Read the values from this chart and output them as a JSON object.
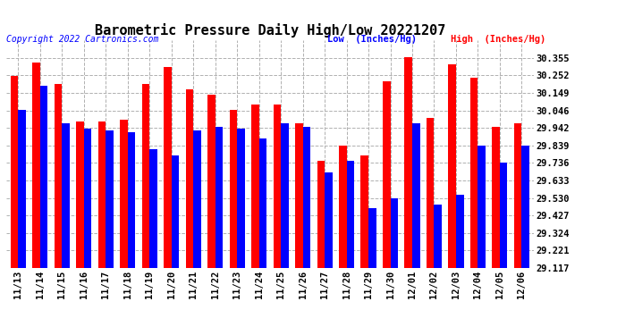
{
  "title": "Barometric Pressure Daily High/Low 20221207",
  "copyright": "Copyright 2022 Cartronics.com",
  "legend_low": "Low  (Inches/Hg)",
  "legend_high": "High  (Inches/Hg)",
  "dates": [
    "11/13",
    "11/14",
    "11/15",
    "11/16",
    "11/17",
    "11/18",
    "11/19",
    "11/20",
    "11/21",
    "11/22",
    "11/23",
    "11/24",
    "11/25",
    "11/26",
    "11/27",
    "11/28",
    "11/29",
    "11/30",
    "12/01",
    "12/02",
    "12/03",
    "12/04",
    "12/05",
    "12/06"
  ],
  "high": [
    30.25,
    30.33,
    30.2,
    29.98,
    29.98,
    29.99,
    30.2,
    30.3,
    30.17,
    30.14,
    30.05,
    30.08,
    30.08,
    29.97,
    29.75,
    29.84,
    29.78,
    30.22,
    30.36,
    30.0,
    30.32,
    30.24,
    29.95,
    29.97
  ],
  "low": [
    30.05,
    30.19,
    29.97,
    29.94,
    29.93,
    29.92,
    29.82,
    29.78,
    29.93,
    29.95,
    29.94,
    29.88,
    29.97,
    29.95,
    29.68,
    29.75,
    29.47,
    29.53,
    29.97,
    29.49,
    29.55,
    29.84,
    29.74,
    29.84
  ],
  "ylim_min": 29.117,
  "ylim_max": 30.46,
  "yticks": [
    29.117,
    29.221,
    29.324,
    29.427,
    29.53,
    29.633,
    29.736,
    29.839,
    29.942,
    30.046,
    30.149,
    30.252,
    30.355
  ],
  "bg_color": "#ffffff",
  "bar_color_high": "#ff0000",
  "bar_color_low": "#0000ff",
  "grid_color": "#b0b0b0",
  "title_fontsize": 11,
  "tick_fontsize": 7.5,
  "bar_width": 0.35,
  "figwidth": 6.9,
  "figheight": 3.75,
  "dpi": 100
}
